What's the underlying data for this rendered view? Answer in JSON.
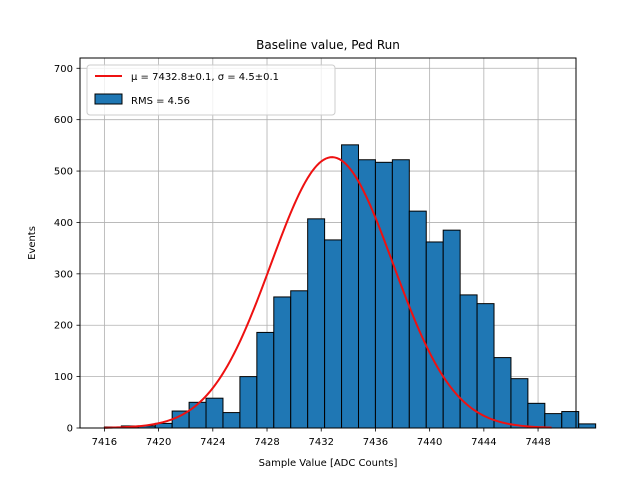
{
  "chart_data": {
    "type": "bar",
    "title": "Baseline value, Ped Run",
    "xlabel": "Sample Value [ADC Counts]",
    "ylabel": "Events",
    "xlim": [
      7414.2,
      7450.8
    ],
    "ylim": [
      0,
      720
    ],
    "grid": true,
    "legend_position": "top-left",
    "bin_width": 1.25,
    "bins": [
      {
        "x0": 7416.0,
        "value": 2
      },
      {
        "x0": 7417.25,
        "value": 4
      },
      {
        "x0": 7418.5,
        "value": 4
      },
      {
        "x0": 7419.75,
        "value": 9
      },
      {
        "x0": 7421.0,
        "value": 33
      },
      {
        "x0": 7422.25,
        "value": 50
      },
      {
        "x0": 7423.5,
        "value": 58
      },
      {
        "x0": 7424.75,
        "value": 30
      },
      {
        "x0": 7426.0,
        "value": 100
      },
      {
        "x0": 7427.25,
        "value": 186
      },
      {
        "x0": 7428.5,
        "value": 255
      },
      {
        "x0": 7429.75,
        "value": 267
      },
      {
        "x0": 7431.0,
        "value": 407
      },
      {
        "x0": 7432.25,
        "value": 366
      },
      {
        "x0": 7433.5,
        "value": 551
      },
      {
        "x0": 7434.75,
        "value": 522
      },
      {
        "x0": 7436.0,
        "value": 517
      },
      {
        "x0": 7437.25,
        "value": 522
      },
      {
        "x0": 7438.5,
        "value": 422
      },
      {
        "x0": 7439.75,
        "value": 362
      },
      {
        "x0": 7441.0,
        "value": 385
      },
      {
        "x0": 7442.25,
        "value": 259
      },
      {
        "x0": 7443.5,
        "value": 242
      },
      {
        "x0": 7444.75,
        "value": 137
      },
      {
        "x0": 7446.0,
        "value": 96
      },
      {
        "x0": 7447.25,
        "value": 48
      },
      {
        "x0": 7448.5,
        "value": 28
      },
      {
        "x0": 7449.75,
        "value": 32
      },
      {
        "x0": 7451.0,
        "value": 8
      }
    ],
    "fit": {
      "name_prefix": "μ",
      "label": "μ = 7432.8±0.1, σ = 4.5±0.1",
      "mu": 7432.8,
      "sigma": 4.5,
      "amplitude": 527,
      "x_range": [
        7416,
        7449
      ]
    },
    "hist_label": "RMS = 4.56",
    "x_ticks": [
      7416,
      7420,
      7424,
      7428,
      7432,
      7436,
      7440,
      7444,
      7448
    ],
    "y_ticks": [
      0,
      100,
      200,
      300,
      400,
      500,
      600,
      700
    ],
    "colors": {
      "bar_fill": "#1f77b4",
      "bar_edge": "#000000",
      "fit_line": "#ee1111",
      "grid": "#b0b0b0"
    }
  }
}
